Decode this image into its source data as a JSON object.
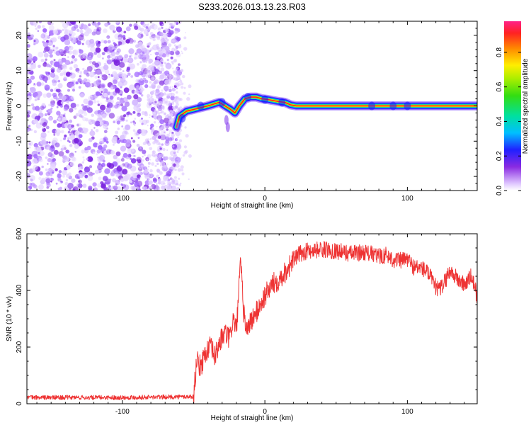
{
  "chart_data": [
    {
      "type": "heatmap",
      "title": "S233.2026.013.13.23.R03",
      "xlabel": "Height of straight line (km)",
      "ylabel": "Frequency (Hz)",
      "xlim": [
        -167,
        149
      ],
      "ylim": [
        -24,
        24
      ],
      "xticks": [
        -100,
        0,
        100
      ],
      "yticks": [
        -20,
        -10,
        0,
        10,
        20
      ],
      "noise_region": {
        "x": [
          -167,
          -60
        ],
        "y": [
          -24,
          24
        ]
      },
      "ridge": {
        "x": [
          -62,
          -60,
          -55,
          -50,
          -45,
          -40,
          -36,
          -32,
          -28,
          -24,
          -21,
          -18,
          -14,
          -10,
          -6,
          -2,
          2,
          6,
          10,
          14,
          18,
          22,
          30,
          40,
          60,
          80,
          100,
          120,
          149
        ],
        "y": [
          -6,
          -3,
          -1.5,
          -1,
          -0.5,
          0,
          0.5,
          1,
          0,
          -1,
          -2,
          0,
          2,
          2.5,
          2.5,
          2,
          1.8,
          1.5,
          1.2,
          1,
          0.3,
          0,
          0,
          0,
          0,
          0,
          0,
          0,
          0
        ]
      },
      "colorbar": {
        "label": "Normalized spectral amplitude",
        "ticks": [
          "0.0",
          "0.2",
          "0.4",
          "0.6",
          "0.8"
        ],
        "range": [
          0,
          0.98
        ]
      }
    },
    {
      "type": "line",
      "xlabel": "Height of straight line (km)",
      "ylabel": "SNR (10 * v/v)",
      "xlim": [
        -167,
        149
      ],
      "ylim": [
        0,
        600
      ],
      "xticks": [
        -100,
        0,
        100
      ],
      "yticks": [
        0,
        200,
        400,
        600
      ],
      "series": [
        {
          "name": "SNR",
          "color": "#ee3333",
          "x": [
            -167,
            -100,
            -50,
            -48,
            -45,
            -42,
            -38,
            -35,
            -32,
            -28,
            -25,
            -22,
            -20,
            -17,
            -15,
            -13,
            -10,
            -5,
            0,
            5,
            10,
            15,
            20,
            25,
            30,
            40,
            50,
            60,
            70,
            80,
            85,
            90,
            95,
            100,
            105,
            110,
            115,
            118,
            122,
            125,
            130,
            135,
            140,
            145,
            149
          ],
          "y": [
            22,
            22,
            25,
            150,
            130,
            180,
            200,
            165,
            215,
            250,
            230,
            300,
            260,
            500,
            330,
            260,
            290,
            330,
            380,
            420,
            440,
            470,
            510,
            530,
            540,
            545,
            540,
            530,
            535,
            520,
            525,
            510,
            505,
            510,
            480,
            480,
            460,
            425,
            400,
            420,
            470,
            440,
            420,
            450,
            380
          ]
        }
      ]
    }
  ],
  "colors": {
    "line": "#ee3333",
    "noise": "#7733ee",
    "ridge_core": "#ff2020"
  }
}
